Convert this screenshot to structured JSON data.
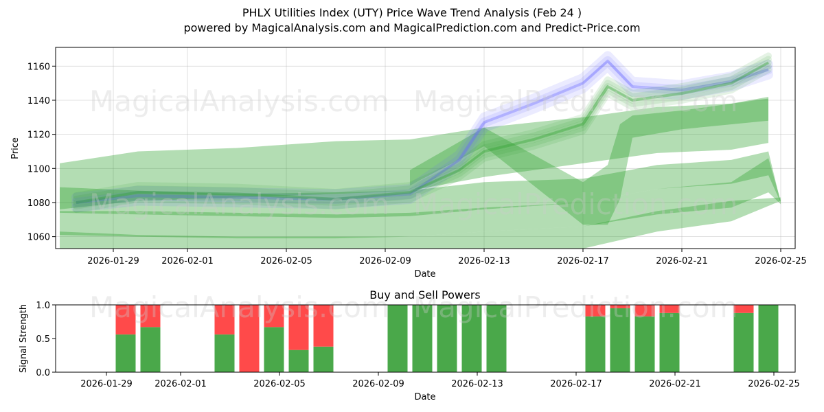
{
  "title": {
    "line1": "PHLX Utilities Index (UTY) Price Wave Trend Analysis (Feb 24 )",
    "line2": "powered by MagicalAnalysis.com and MagicalPrediction.com and Predict-Price.com"
  },
  "watermarks": [
    "MagicalAnalysis.com",
    "MagicalPrediction.com"
  ],
  "colors": {
    "green_band": "#2ca02c",
    "blue_band": "#6666ff",
    "buy": "#4aa84a",
    "sell": "#ff4a4a",
    "grid": "#b0b0b0"
  },
  "chart_data": [
    {
      "type": "area",
      "title": "",
      "xlabel": "Date",
      "ylabel": "Price",
      "x_range": [
        "2026-01-26T16:00",
        "2026-02-25T14:00"
      ],
      "ylim": [
        1053,
        1171
      ],
      "x_ticks": [
        "2026-01-29",
        "2026-02-01",
        "2026-02-05",
        "2026-02-09",
        "2026-02-13",
        "2026-02-17",
        "2026-02-21",
        "2026-02-25"
      ],
      "y_ticks": [
        1060,
        1080,
        1100,
        1120,
        1140,
        1160
      ],
      "grid": true,
      "series": [
        {
          "name": "wide-band-upper",
          "color": "green",
          "x": [
            "2026-01-26T20:00",
            "2026-01-30",
            "2026-02-03",
            "2026-02-07",
            "2026-02-10",
            "2026-02-13",
            "2026-02-17",
            "2026-02-20",
            "2026-02-23",
            "2026-02-24T12:00"
          ],
          "upper": [
            1103,
            1110,
            1112,
            1116,
            1117,
            1124,
            1130,
            1136,
            1138,
            1142
          ],
          "lower": [
            1076,
            1081,
            1083,
            1085,
            1087,
            1095,
            1103,
            1109,
            1111,
            1115
          ]
        },
        {
          "name": "mid-band",
          "color": "green",
          "x": [
            "2026-01-26T20:00",
            "2026-01-30",
            "2026-02-03",
            "2026-02-07",
            "2026-02-10",
            "2026-02-13",
            "2026-02-17",
            "2026-02-20",
            "2026-02-23",
            "2026-02-24T12:00",
            "2026-02-25"
          ],
          "upper": [
            1089,
            1087,
            1085,
            1086,
            1087,
            1092,
            1094,
            1102,
            1105,
            1110,
            1080
          ],
          "lower": [
            1074,
            1073,
            1072,
            1071,
            1072,
            1076,
            1080,
            1088,
            1091,
            1096,
            1080
          ]
        },
        {
          "name": "low-band",
          "color": "green",
          "x": [
            "2026-01-26T20:00",
            "2026-01-30",
            "2026-02-03",
            "2026-02-07",
            "2026-02-10",
            "2026-02-13",
            "2026-02-17",
            "2026-02-20",
            "2026-02-23",
            "2026-02-24T12:00",
            "2026-02-25"
          ],
          "upper": [
            1075,
            1075,
            1074,
            1073,
            1074,
            1077,
            1080,
            1088,
            1092,
            1106,
            1081
          ],
          "lower": [
            1061,
            1060,
            1059,
            1059,
            1060,
            1063,
            1066,
            1073,
            1077,
            1086,
            1079
          ]
        },
        {
          "name": "bottom-band",
          "color": "green",
          "x": [
            "2026-01-26T20:00",
            "2026-01-30",
            "2026-02-03",
            "2026-02-07",
            "2026-02-10",
            "2026-02-13",
            "2026-02-17",
            "2026-02-20",
            "2026-02-23",
            "2026-02-25"
          ],
          "upper": [
            1063,
            1061,
            1060,
            1060,
            1060,
            1063,
            1066,
            1075,
            1081,
            1083
          ],
          "lower": [
            1053,
            1053,
            1053,
            1053,
            1053,
            1053,
            1053,
            1063,
            1069,
            1081
          ]
        },
        {
          "name": "wave-ridge",
          "color": "green",
          "x": [
            "2026-02-10",
            "2026-02-13",
            "2026-02-15",
            "2026-02-17",
            "2026-02-18",
            "2026-02-18T12:00",
            "2026-02-19",
            "2026-02-21",
            "2026-02-24T12:00"
          ],
          "upper": [
            1099,
            1124,
            1108,
            1092,
            1102,
            1126,
            1131,
            1134,
            1141
          ],
          "lower": [
            1090,
            1113,
            1090,
            1067,
            1067,
            1082,
            1118,
            1123,
            1128
          ]
        },
        {
          "name": "forecast-blue",
          "color": "blue",
          "x": [
            "2026-01-27T12:00",
            "2026-01-30",
            "2026-02-03",
            "2026-02-07",
            "2026-02-10",
            "2026-02-12",
            "2026-02-13",
            "2026-02-15",
            "2026-02-17",
            "2026-02-18",
            "2026-02-19",
            "2026-02-21",
            "2026-02-23",
            "2026-02-24T12:00"
          ],
          "center": [
            1080,
            1084,
            1083,
            1082,
            1085,
            1105,
            1127,
            1138,
            1150,
            1163,
            1148,
            1146,
            1151,
            1158
          ]
        },
        {
          "name": "trend-green",
          "color": "green",
          "x": [
            "2026-01-27T12:00",
            "2026-01-30",
            "2026-02-03",
            "2026-02-07",
            "2026-02-10",
            "2026-02-12",
            "2026-02-13",
            "2026-02-15",
            "2026-02-17",
            "2026-02-18",
            "2026-02-19",
            "2026-02-21",
            "2026-02-23",
            "2026-02-24T12:00"
          ],
          "center": [
            1080,
            1086,
            1085,
            1082,
            1086,
            1099,
            1110,
            1117,
            1126,
            1148,
            1140,
            1144,
            1150,
            1162
          ]
        }
      ]
    },
    {
      "type": "bar",
      "title": "Buy and Sell Powers",
      "xlabel": "Date",
      "ylabel": "Signal Strength",
      "ylim": [
        0,
        1
      ],
      "y_ticks": [
        "0.0",
        "0.5",
        "1.0"
      ],
      "x_ticks": [
        "2026-01-29",
        "2026-02-01",
        "2026-02-05",
        "2026-02-09",
        "2026-02-13",
        "2026-02-17",
        "2026-02-21",
        "2026-02-25"
      ],
      "legend": "none",
      "dates": [
        "2026-01-29",
        "2026-01-30",
        "2026-02-02",
        "2026-02-03",
        "2026-02-04",
        "2026-02-05",
        "2026-02-06",
        "2026-02-09",
        "2026-02-10",
        "2026-02-11",
        "2026-02-12",
        "2026-02-13",
        "2026-02-17",
        "2026-02-18",
        "2026-02-19",
        "2026-02-20",
        "2026-02-23",
        "2026-02-24"
      ],
      "series": [
        {
          "name": "Buy",
          "color": "green",
          "values": [
            0.56,
            0.67,
            0.56,
            0.0,
            0.67,
            0.33,
            0.38,
            1.0,
            1.0,
            1.0,
            1.0,
            1.0,
            0.83,
            0.95,
            0.83,
            0.88,
            0.88,
            1.0
          ]
        },
        {
          "name": "Sell",
          "color": "red",
          "values": [
            0.44,
            0.33,
            0.44,
            1.0,
            0.33,
            0.67,
            0.62,
            0.0,
            0.0,
            0.0,
            0.0,
            0.0,
            0.17,
            0.05,
            0.17,
            0.12,
            0.12,
            0.0
          ]
        }
      ]
    }
  ]
}
